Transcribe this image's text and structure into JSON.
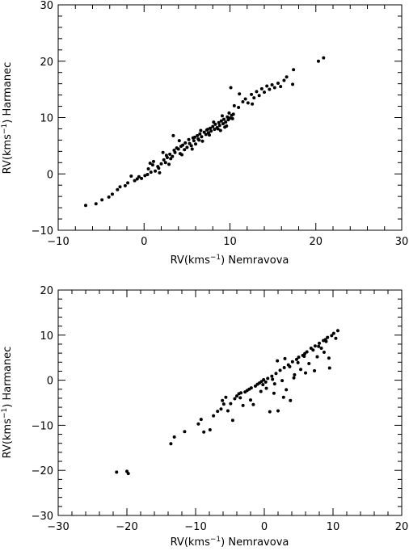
{
  "chart_data": [
    {
      "type": "scatter",
      "title": "",
      "xlabel": "RV(kms-1) Nemravova",
      "ylabel": "RV(kms-1) Harmanec",
      "xlim": [
        -10,
        30
      ],
      "ylim": [
        -10,
        30
      ],
      "xticks": [
        -10,
        0,
        10,
        20,
        30
      ],
      "yticks": [
        -10,
        0,
        10,
        20,
        30
      ],
      "grid": false,
      "series": [
        {
          "points": [
            [
              -6.8,
              -5.6
            ],
            [
              -5.6,
              -5.3
            ],
            [
              -4.9,
              -4.6
            ],
            [
              -4.1,
              -4.1
            ],
            [
              -3.7,
              -3.6
            ],
            [
              -3.1,
              -2.8
            ],
            [
              -2.8,
              -2.3
            ],
            [
              -2.2,
              -2.1
            ],
            [
              -1.9,
              -1.6
            ],
            [
              -1.5,
              -0.4
            ],
            [
              -1.1,
              -1.2
            ],
            [
              -0.6,
              -0.5
            ],
            [
              -0.3,
              -0.8
            ],
            [
              0.1,
              -0.3
            ],
            [
              0.4,
              -0.1
            ],
            [
              0.5,
              0.9
            ],
            [
              0.8,
              0.3
            ],
            [
              1.0,
              1.6
            ],
            [
              1.3,
              0.5
            ],
            [
              1.6,
              1.3
            ],
            [
              1.8,
              0.2
            ],
            [
              2.0,
              1.8
            ],
            [
              2.3,
              2.5
            ],
            [
              2.5,
              2.0
            ],
            [
              2.7,
              2.9
            ],
            [
              2.9,
              1.7
            ],
            [
              3.1,
              2.7
            ],
            [
              3.3,
              3.1
            ],
            [
              3.5,
              4.2
            ],
            [
              3.6,
              3.8
            ],
            [
              3.8,
              4.6
            ],
            [
              4.0,
              4.4
            ],
            [
              4.2,
              3.6
            ],
            [
              4.3,
              4.9
            ],
            [
              4.5,
              5.1
            ],
            [
              4.7,
              4.3
            ],
            [
              4.8,
              5.5
            ],
            [
              5.0,
              4.7
            ],
            [
              5.2,
              6.1
            ],
            [
              5.3,
              5.4
            ],
            [
              5.5,
              5.0
            ],
            [
              5.7,
              6.4
            ],
            [
              5.8,
              5.9
            ],
            [
              6.0,
              5.3
            ],
            [
              6.2,
              6.8
            ],
            [
              6.3,
              6.2
            ],
            [
              6.5,
              7.1
            ],
            [
              6.7,
              6.6
            ],
            [
              6.8,
              5.8
            ],
            [
              7.0,
              7.4
            ],
            [
              7.2,
              7.0
            ],
            [
              7.3,
              7.8
            ],
            [
              7.5,
              7.3
            ],
            [
              7.7,
              8.1
            ],
            [
              7.8,
              7.6
            ],
            [
              8.0,
              8.4
            ],
            [
              8.2,
              7.9
            ],
            [
              8.3,
              8.8
            ],
            [
              8.5,
              8.2
            ],
            [
              8.7,
              9.1
            ],
            [
              8.8,
              8.6
            ],
            [
              9.0,
              9.4
            ],
            [
              9.2,
              8.9
            ],
            [
              9.3,
              9.7
            ],
            [
              9.5,
              9.2
            ],
            [
              9.7,
              10.1
            ],
            [
              9.8,
              9.6
            ],
            [
              10.0,
              9.9
            ],
            [
              10.2,
              10.4
            ],
            [
              10.3,
              9.8
            ],
            [
              9.1,
              10.3
            ],
            [
              9.6,
              8.5
            ],
            [
              8.9,
              7.7
            ],
            [
              10.1,
              15.3
            ],
            [
              3.4,
              6.8
            ],
            [
              4.1,
              5.9
            ],
            [
              2.2,
              3.8
            ],
            [
              5.9,
              6.5
            ],
            [
              7.4,
              7.9
            ],
            [
              10.5,
              12.1
            ],
            [
              11.0,
              11.8
            ],
            [
              11.5,
              12.8
            ],
            [
              11.8,
              13.3
            ],
            [
              12.1,
              12.6
            ],
            [
              12.5,
              14.1
            ],
            [
              12.8,
              13.5
            ],
            [
              13.1,
              14.6
            ],
            [
              13.4,
              13.9
            ],
            [
              13.7,
              15.1
            ],
            [
              14.0,
              14.5
            ],
            [
              14.3,
              15.6
            ],
            [
              14.6,
              15.0
            ],
            [
              14.9,
              15.8
            ],
            [
              15.2,
              15.3
            ],
            [
              15.6,
              16.1
            ],
            [
              15.9,
              15.5
            ],
            [
              16.3,
              16.6
            ],
            [
              16.6,
              17.2
            ],
            [
              17.4,
              18.5
            ],
            [
              17.3,
              15.9
            ],
            [
              11.1,
              14.2
            ],
            [
              12.6,
              12.4
            ],
            [
              20.3,
              20.0
            ],
            [
              20.9,
              20.6
            ],
            [
              1.1,
              2.2
            ],
            [
              2.6,
              3.3
            ],
            [
              6.6,
              7.7
            ],
            [
              8.6,
              8.0
            ],
            [
              9.9,
              10.8
            ],
            [
              10.4,
              10.6
            ],
            [
              9.4,
              8.3
            ],
            [
              8.1,
              9.2
            ],
            [
              7.6,
              6.9
            ],
            [
              6.4,
              6.0
            ],
            [
              5.6,
              4.4
            ],
            [
              4.4,
              3.4
            ],
            [
              3.0,
              3.5
            ],
            [
              1.7,
              1.0
            ],
            [
              0.7,
              1.9
            ],
            [
              -0.8,
              -0.9
            ]
          ]
        }
      ]
    },
    {
      "type": "scatter",
      "title": "",
      "xlabel": "RV(kms-1) Nemravova",
      "ylabel": "RV(kms-1) Harmanec",
      "xlim": [
        -30,
        20
      ],
      "ylim": [
        -30,
        20
      ],
      "xticks": [
        -30,
        -20,
        -10,
        0,
        10,
        20
      ],
      "yticks": [
        -30,
        -20,
        -10,
        0,
        10,
        20
      ],
      "grid": false,
      "series": [
        {
          "points": [
            [
              -21.5,
              -20.4
            ],
            [
              -20.0,
              -20.2
            ],
            [
              -19.8,
              -20.7
            ],
            [
              -13.6,
              -14.1
            ],
            [
              -13.1,
              -12.6
            ],
            [
              -11.6,
              -11.4
            ],
            [
              -9.6,
              -9.7
            ],
            [
              -9.2,
              -8.7
            ],
            [
              -8.8,
              -11.5
            ],
            [
              -7.9,
              -11.0
            ],
            [
              -7.4,
              -7.9
            ],
            [
              -6.8,
              -6.9
            ],
            [
              -6.3,
              -6.4
            ],
            [
              -5.9,
              -5.3
            ],
            [
              -5.6,
              -3.8
            ],
            [
              -5.3,
              -6.8
            ],
            [
              -4.9,
              -5.2
            ],
            [
              -4.6,
              -8.9
            ],
            [
              -4.3,
              -4.1
            ],
            [
              -4.0,
              -3.5
            ],
            [
              -3.7,
              -3.0
            ],
            [
              -3.4,
              -2.8
            ],
            [
              -3.1,
              -5.6
            ],
            [
              -2.8,
              -2.6
            ],
            [
              -2.5,
              -2.3
            ],
            [
              -2.2,
              -2.0
            ],
            [
              -1.9,
              -1.7
            ],
            [
              -1.6,
              -5.4
            ],
            [
              -1.3,
              -1.3
            ],
            [
              -1.0,
              -0.9
            ],
            [
              -0.7,
              -0.6
            ],
            [
              -0.4,
              -0.3
            ],
            [
              -0.1,
              0.1
            ],
            [
              0.2,
              -0.4
            ],
            [
              0.5,
              0.4
            ],
            [
              0.8,
              -7.0
            ],
            [
              1.1,
              0.9
            ],
            [
              1.4,
              -2.9
            ],
            [
              1.7,
              1.5
            ],
            [
              2.0,
              -6.8
            ],
            [
              2.3,
              2.2
            ],
            [
              2.6,
              -0.1
            ],
            [
              2.9,
              2.8
            ],
            [
              3.2,
              -2.1
            ],
            [
              3.5,
              3.4
            ],
            [
              3.8,
              -4.5
            ],
            [
              4.1,
              4.1
            ],
            [
              4.4,
              1.2
            ],
            [
              4.7,
              4.6
            ],
            [
              5.0,
              5.1
            ],
            [
              5.3,
              2.4
            ],
            [
              5.6,
              5.5
            ],
            [
              5.9,
              5.9
            ],
            [
              6.2,
              6.3
            ],
            [
              6.5,
              3.7
            ],
            [
              6.8,
              7.1
            ],
            [
              7.1,
              6.7
            ],
            [
              7.4,
              7.6
            ],
            [
              7.7,
              5.2
            ],
            [
              8.0,
              8.2
            ],
            [
              8.3,
              7.1
            ],
            [
              8.6,
              8.8
            ],
            [
              8.9,
              9.0
            ],
            [
              9.2,
              9.5
            ],
            [
              9.5,
              2.7
            ],
            [
              9.8,
              9.9
            ],
            [
              10.1,
              10.4
            ],
            [
              10.4,
              9.3
            ],
            [
              10.7,
              11.0
            ],
            [
              1.9,
              4.3
            ],
            [
              3.0,
              4.8
            ],
            [
              4.3,
              0.5
            ],
            [
              6.0,
              1.6
            ],
            [
              7.3,
              2.1
            ],
            [
              8.7,
              6.2
            ],
            [
              9.4,
              4.9
            ],
            [
              0.3,
              -1.8
            ],
            [
              -0.5,
              -2.5
            ],
            [
              1.5,
              -0.8
            ],
            [
              2.8,
              -3.8
            ],
            [
              -2.0,
              -4.4
            ],
            [
              -3.5,
              -3.9
            ],
            [
              -6.1,
              -4.5
            ],
            [
              -0.2,
              -1.0
            ],
            [
              1.2,
              0.2
            ],
            [
              5.8,
              5.3
            ],
            [
              7.9,
              7.5
            ],
            [
              9.0,
              8.6
            ],
            [
              3.7,
              3.0
            ],
            [
              4.9,
              3.9
            ]
          ]
        }
      ]
    }
  ]
}
